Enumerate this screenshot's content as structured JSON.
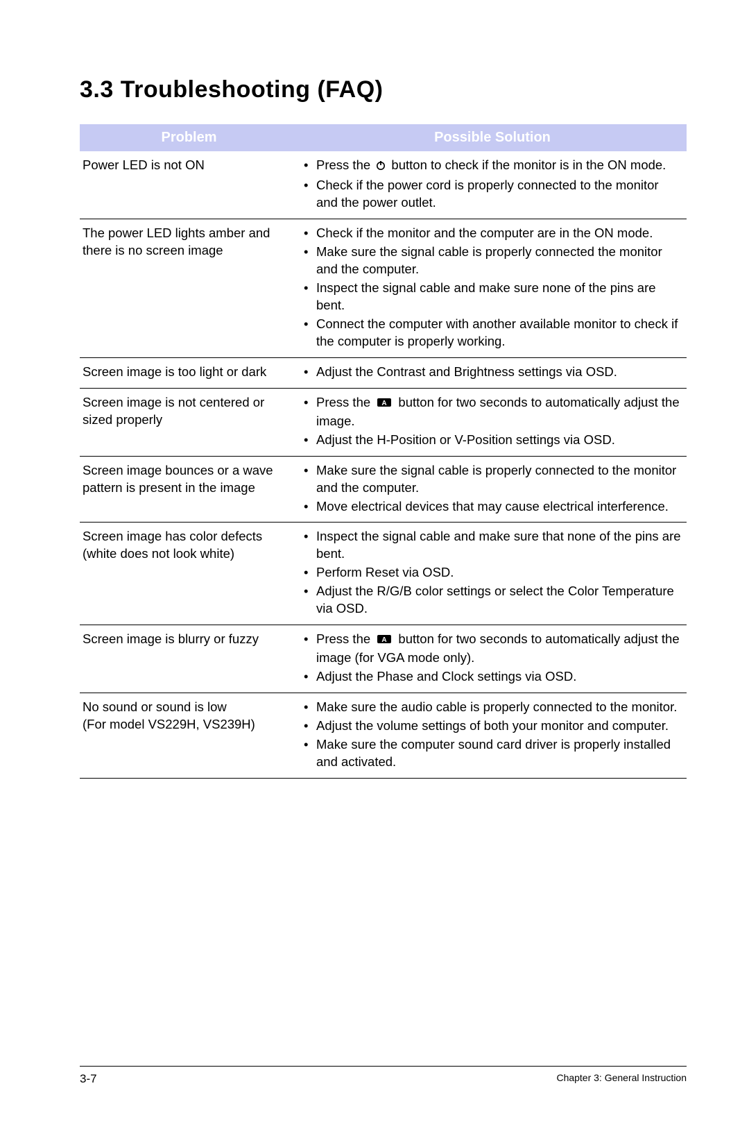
{
  "heading": "3.3    Troubleshooting (FAQ)",
  "table": {
    "header_bg": "#c6caf3",
    "header_fg": "#ffffff",
    "columns": [
      "Problem",
      "Possible Solution"
    ],
    "rows": [
      {
        "problem": "Power  LED is not ON",
        "solutions": [
          {
            "pre": "Press the ",
            "icon": "power",
            "post": " button to check if the monitor is in the ON mode."
          },
          {
            "text": "Check if the power cord is properly connected to the monitor and the power outlet."
          }
        ]
      },
      {
        "problem": "The power LED lights amber and there is no screen image",
        "solutions": [
          {
            "text": "Check if the monitor and the computer are in the ON mode."
          },
          {
            "text": "Make sure the signal cable is properly connected the monitor and the computer."
          },
          {
            "text": "Inspect the signal cable and make sure none of the pins are bent."
          },
          {
            "text": "Connect the computer with another available monitor to check if the computer is properly working."
          }
        ]
      },
      {
        "problem": "Screen image is too light or dark",
        "solutions": [
          {
            "text": "Adjust the Contrast and Brightness settings via OSD."
          }
        ]
      },
      {
        "problem": "Screen image is not centered or sized properly",
        "solutions": [
          {
            "pre": "Press the ",
            "icon": "auto",
            "post": " button for two seconds to automatically adjust the image."
          },
          {
            "text": "Adjust the H-Position or V-Position settings via OSD."
          }
        ]
      },
      {
        "problem": "Screen image bounces or a wave pattern is present in the image",
        "solutions": [
          {
            "text": "Make sure the signal cable is properly connected to the monitor and the computer."
          },
          {
            "text": "Move electrical devices that may cause electrical interference."
          }
        ]
      },
      {
        "problem": "Screen image has color defects (white does not look white)",
        "solutions": [
          {
            "text": "Inspect the signal cable and make sure that none of the pins are bent."
          },
          {
            "text": "Perform Reset via OSD."
          },
          {
            "text": "Adjust the R/G/B color settings or select the Color Temperature via OSD."
          }
        ]
      },
      {
        "problem": "Screen image is blurry or fuzzy",
        "solutions": [
          {
            "pre": "Press the ",
            "icon": "auto",
            "post": " button for two seconds to automatically adjust the image (for VGA mode only)."
          },
          {
            "text": "Adjust the Phase and Clock settings via OSD."
          }
        ]
      },
      {
        "problem": "No sound or sound is low\n(For model VS229H, VS239H)",
        "solutions": [
          {
            "text": "Make sure the audio cable is properly connected to the monitor."
          },
          {
            "text": "Adjust the volume settings of both your monitor and computer."
          },
          {
            "text": "Make sure the computer sound card driver is properly installed and activated."
          }
        ]
      }
    ]
  },
  "footer": {
    "page_number": "3-7",
    "chapter": "Chapter 3: General Instruction"
  },
  "icons": {
    "power": "power-icon",
    "auto": "auto-adjust-icon"
  }
}
